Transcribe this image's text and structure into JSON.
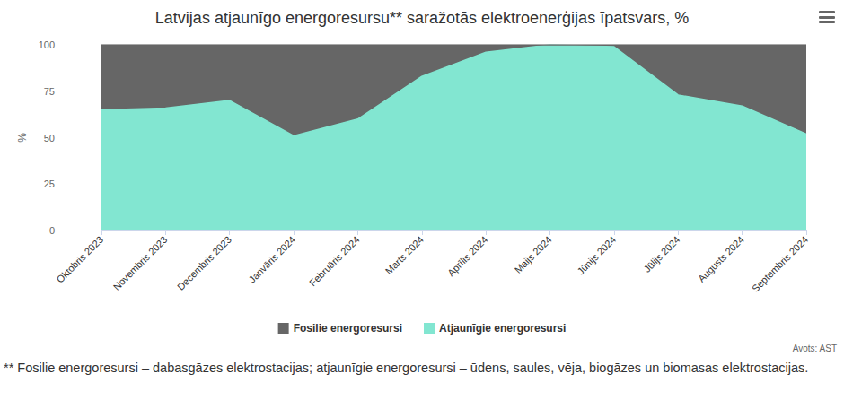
{
  "chart_data": {
    "type": "area",
    "title": "Latvijas atjaunīgo energoresursu** saražotās elektroenerģijas īpatsvars, %",
    "y_label": "%",
    "categories": [
      "Oktobris 2023",
      "Novembris 2023",
      "Decembris 2023",
      "Janvāris 2024",
      "Februāris 2024",
      "Marts 2024",
      "Aprīlis 2024",
      "Maijs 2024",
      "Jūnijs 2024",
      "Jūlijs 2024",
      "Augusts 2024",
      "Septembris 2024"
    ],
    "series": [
      {
        "name": "Fosilie energoresursi",
        "color": "#666666",
        "values": [
          35,
          34,
          30,
          49,
          40,
          17,
          4,
          0,
          1,
          27,
          33,
          48
        ]
      },
      {
        "name": "Atjaunīgie energoresursi",
        "color": "#82e6d1",
        "values": [
          65,
          66,
          70,
          51,
          60,
          83,
          96,
          100,
          99,
          73,
          67,
          52
        ]
      }
    ],
    "stacked": true,
    "ylim": [
      0,
      100
    ],
    "yticks": [
      0,
      25,
      50,
      75,
      100
    ],
    "grid": true,
    "legend": "bottom",
    "source": "Avots: AST",
    "footnote": "** Fosilie energoresursi – dabasgāzes elektrostacijas; atjaunīgie energoresursi – ūdens, saules, vēja, biogāzes un biomasas elektrostacijas."
  }
}
